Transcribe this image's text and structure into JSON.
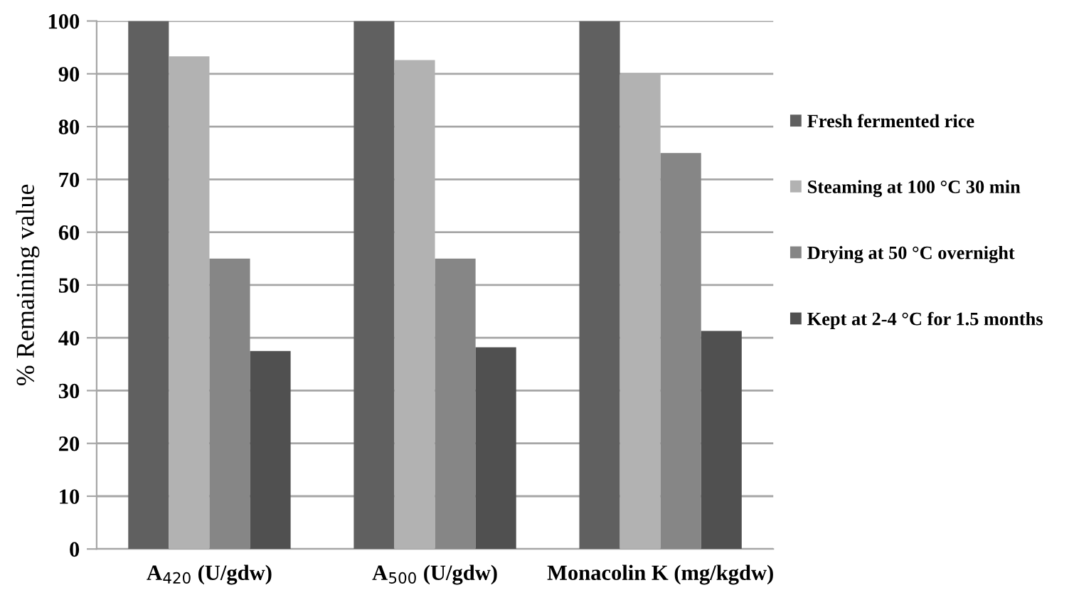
{
  "chart_data": {
    "type": "bar",
    "ylabel": "% Remaining value",
    "categories": [
      "A$_{420}$ (U/gdw)",
      "A$_{500}$ (U/gdw)",
      "Monacolin K (mg/kgdw)"
    ],
    "series": [
      {
        "name": "Fresh fermented rice",
        "color": "#606060",
        "values": [
          100,
          100,
          100
        ]
      },
      {
        "name": "Steaming at 100 °C 30 min",
        "color": "#b2b2b2",
        "values": [
          93.3,
          92.6,
          90
        ]
      },
      {
        "name": "Drying at 50 °C overnight",
        "color": "#868686",
        "values": [
          55,
          55,
          75
        ]
      },
      {
        "name": "Kept at 2-4 °C for 1.5 months",
        "color": "#505050",
        "values": [
          37.5,
          38.2,
          41.3
        ]
      }
    ],
    "ylim": [
      0,
      100
    ],
    "yticks": [
      0,
      10,
      20,
      30,
      40,
      50,
      60,
      70,
      80,
      90,
      100
    ],
    "grid": "y",
    "legend": "right"
  }
}
